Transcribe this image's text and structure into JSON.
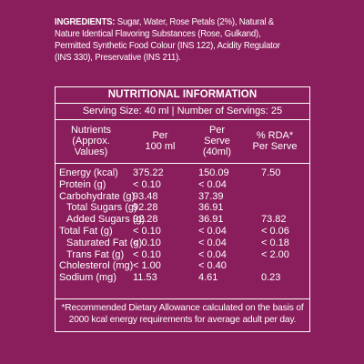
{
  "ingredients": {
    "label": "INGREDIENTS:",
    "text": "Sugar, Water, Rose Petals (2%), Natural & Nature Identical Flavoring Substances (Rose, Gulkand), Permitted Synthetic Food Colour (INS 122), Acidity Regulator (INS 330), Preservative (INS 211)."
  },
  "nutrition": {
    "title": "NUTRITIONAL INFORMATION",
    "serving": "Serving Size: 40 ml  | Number of Servings: 25",
    "headers": {
      "nutrients_line1": "Nutrients",
      "nutrients_line2": "(Approx. Values)",
      "per100_line1": "Per",
      "per100_line2": "100 ml",
      "perserve_line1": "Per",
      "perserve_line2": "Serve",
      "perserve_line3": "(40ml)",
      "rda_line1": "% RDA*",
      "rda_line2": "Per Serve"
    },
    "rows": [
      {
        "name": "Energy (kcal)",
        "per100": "375.22",
        "perserve": "150.09",
        "rda": "7.50"
      },
      {
        "name": "Protein (g)",
        "per100": "< 0.10",
        "perserve": "< 0.04",
        "rda": ""
      },
      {
        "name": "Carbohydrate (g)",
        "per100": "93.48",
        "perserve": "37.39",
        "rda": ""
      },
      {
        "name": "Total Sugars (g)",
        "per100": "92.28",
        "perserve": "36.91",
        "rda": ""
      },
      {
        "name": "Added Sugars (g)",
        "per100": "92.28",
        "perserve": "36.91",
        "rda": "73.82"
      },
      {
        "name": "Total Fat (g)",
        "per100": "< 0.10",
        "perserve": "< 0.04",
        "rda": "< 0.06"
      },
      {
        "name": "Saturated Fat (g)",
        "per100": "< 0.10",
        "perserve": "< 0.04",
        "rda": "< 0.18"
      },
      {
        "name": "Trans Fat (g)",
        "per100": "< 0.10",
        "perserve": "< 0.04",
        "rda": "< 2.00"
      },
      {
        "name": "Cholesterol (mg)",
        "per100": "< 1.00",
        "perserve": "< 0.40",
        "rda": ""
      },
      {
        "name": "Sodium (mg)",
        "per100": "11.53",
        "perserve": "4.61",
        "rda": "0.23"
      }
    ],
    "footnote": "*Recommended Dietary Allowance calculated on the basis of 2000 kcal energy requirements for average adult per day."
  },
  "colors": {
    "background": "#8a1e5c",
    "text": "#ffffff"
  }
}
